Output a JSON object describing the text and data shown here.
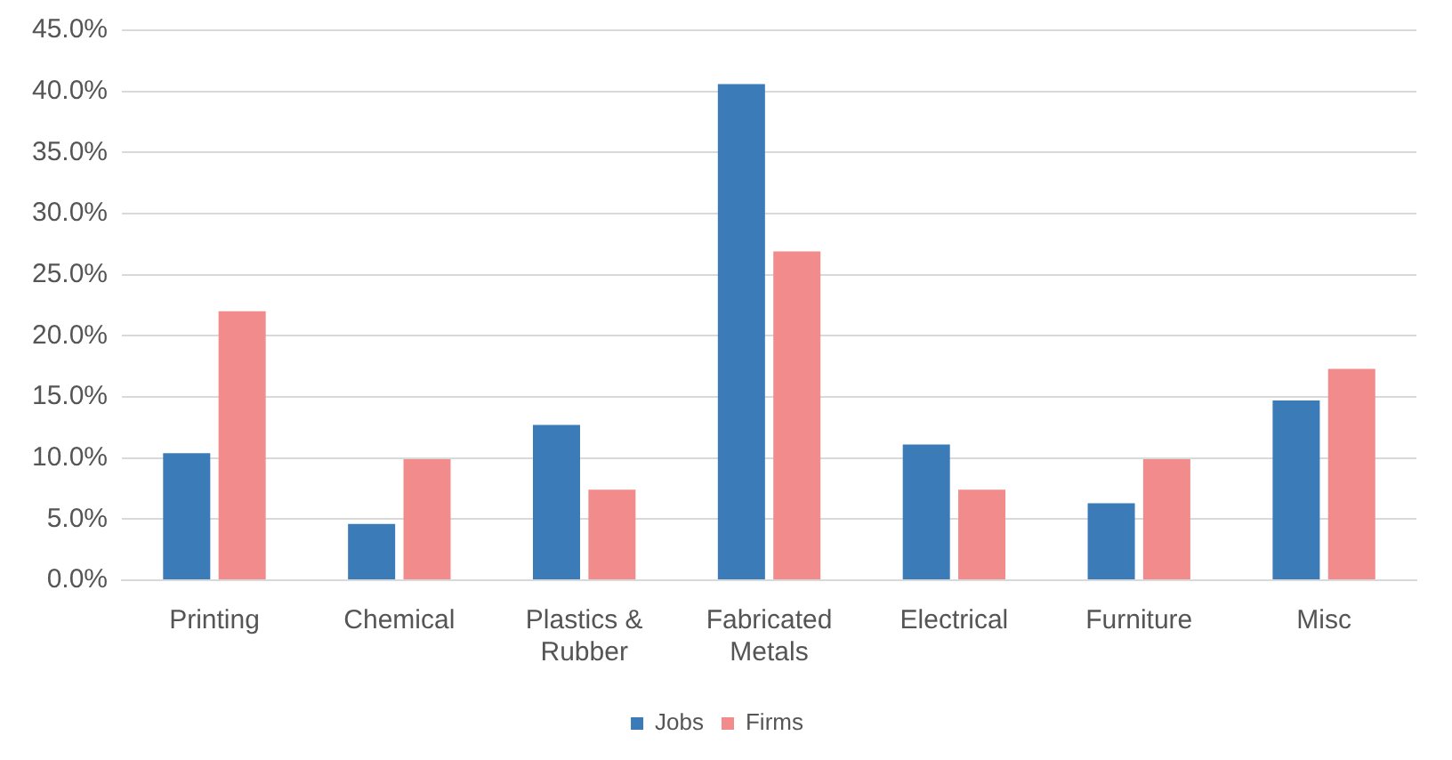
{
  "chart_data": {
    "type": "bar",
    "categories": [
      "Printing",
      "Chemical",
      "Plastics & Rubber",
      "Fabricated Metals",
      "Electrical",
      "Furniture",
      "Misc"
    ],
    "series": [
      {
        "name": "Jobs",
        "color": "#3b7bb8",
        "values": [
          10.4,
          4.6,
          12.7,
          40.6,
          11.1,
          6.3,
          14.7
        ]
      },
      {
        "name": "Firms",
        "color": "#f28b8b",
        "values": [
          22.0,
          9.9,
          7.4,
          26.9,
          7.4,
          9.9,
          17.3
        ]
      }
    ],
    "ylim": [
      0,
      45
    ],
    "yticks": [
      {
        "value": 0,
        "label": "0.0%"
      },
      {
        "value": 5,
        "label": "5.0%"
      },
      {
        "value": 10,
        "label": "10.0%"
      },
      {
        "value": 15,
        "label": "15.0%"
      },
      {
        "value": 20,
        "label": "20.0%"
      },
      {
        "value": 25,
        "label": "25.0%"
      },
      {
        "value": 30,
        "label": "30.0%"
      },
      {
        "value": 35,
        "label": "35.0%"
      },
      {
        "value": 40,
        "label": "40.0%"
      },
      {
        "value": 45,
        "label": "45.0%"
      }
    ],
    "grid": "y",
    "legend": "bottom"
  }
}
